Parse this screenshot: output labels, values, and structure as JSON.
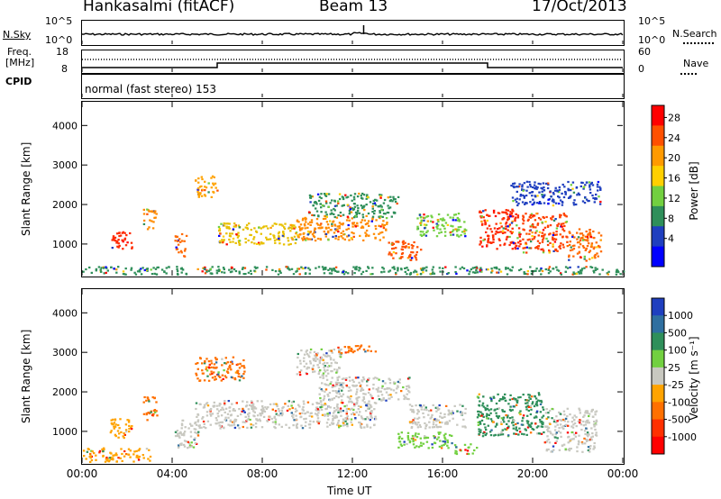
{
  "header": {
    "station": "Hankasalmi (fitACF)",
    "beam": "Beam 13",
    "date": "17/Oct/2013"
  },
  "noise_panel": {
    "left_label": "N.Sky",
    "right_label": "N.Search",
    "ticks_left": [
      "10^5",
      "10^0"
    ],
    "ticks_right": [
      "10^5",
      "10^0"
    ]
  },
  "freq_panel": {
    "left_label_1": "Freq.",
    "left_label_2": "[MHz]",
    "ticks_left": [
      "18",
      "8"
    ],
    "ticks_right": [
      "60",
      "0"
    ],
    "right_label": "Nave",
    "cpid_label": "CPID",
    "mode": "normal (fast stereo) 153"
  },
  "chart_data": [
    {
      "type": "heatmap",
      "name": "power",
      "ylabel": "Slant Range [km]",
      "yticks": [
        1000,
        2000,
        3000,
        4000
      ],
      "ylim": [
        200,
        4600
      ],
      "xlim_hours": [
        0,
        24
      ],
      "colorbar": {
        "label": "Power [dB]",
        "ticks": [
          "28",
          "24",
          "20",
          "16",
          "12",
          "8",
          "4"
        ],
        "colors": [
          "#ff0000",
          "#ff5000",
          "#ff9a00",
          "#ffd000",
          "#72d040",
          "#2f8f5a",
          "#1f3fbf",
          "#0000ff"
        ]
      },
      "blobs": [
        {
          "t0": 1.3,
          "t1": 2.2,
          "r0": 850,
          "r1": 1350,
          "c": "#ff2a00"
        },
        {
          "t0": 2.7,
          "t1": 3.3,
          "r0": 1400,
          "r1": 1900,
          "c": "#ff8a00"
        },
        {
          "t0": 4.1,
          "t1": 4.6,
          "r0": 700,
          "r1": 1300,
          "c": "#ff6a00"
        },
        {
          "t0": 5.0,
          "t1": 6.0,
          "r0": 2200,
          "r1": 2750,
          "c": "#ffa300"
        },
        {
          "t0": 6.0,
          "t1": 9.5,
          "r0": 1000,
          "r1": 1550,
          "c": "#e8c000"
        },
        {
          "t0": 9.5,
          "t1": 13.5,
          "r0": 1100,
          "r1": 1700,
          "c": "#ff8a00"
        },
        {
          "t0": 10.0,
          "t1": 14.0,
          "r0": 1700,
          "r1": 2300,
          "c": "#2f8f5a"
        },
        {
          "t0": 13.5,
          "t1": 15.0,
          "r0": 600,
          "r1": 1100,
          "c": "#ff5000"
        },
        {
          "t0": 14.8,
          "t1": 17.0,
          "r0": 1200,
          "r1": 1800,
          "c": "#72d040"
        },
        {
          "t0": 17.6,
          "t1": 19.5,
          "r0": 900,
          "r1": 1900,
          "c": "#ff2a00"
        },
        {
          "t0": 19.5,
          "t1": 21.5,
          "r0": 800,
          "r1": 1800,
          "c": "#ff4000"
        },
        {
          "t0": 21.5,
          "t1": 23.0,
          "r0": 600,
          "r1": 1400,
          "c": "#ff6a00"
        },
        {
          "t0": 19.0,
          "t1": 23.0,
          "r0": 2000,
          "r1": 2600,
          "c": "#1f3fbf"
        },
        {
          "t0": 0.0,
          "t1": 24.0,
          "r0": 250,
          "r1": 450,
          "c": "#2f8f5a"
        }
      ]
    },
    {
      "type": "heatmap",
      "name": "velocity",
      "ylabel": "Slant Range [km]",
      "yticks": [
        1000,
        2000,
        3000,
        4000
      ],
      "ylim": [
        200,
        4600
      ],
      "xlim_hours": [
        0,
        24
      ],
      "colorbar": {
        "label": "Velocity [m s⁻¹]",
        "ticks": [
          "1000",
          "500",
          "100",
          "25",
          "-25",
          "-100",
          "-500",
          "-1000"
        ],
        "colors": [
          "#1f3fbf",
          "#2f6fa0",
          "#2f8f5a",
          "#72d040",
          "#c8c8c0",
          "#ffa300",
          "#ff7000",
          "#ff3000",
          "#ff0000"
        ]
      },
      "blobs": [
        {
          "t0": 1.2,
          "t1": 2.2,
          "r0": 850,
          "r1": 1350,
          "c": "#ffa300"
        },
        {
          "t0": 2.7,
          "t1": 3.3,
          "r0": 1300,
          "r1": 1900,
          "c": "#ff7000"
        },
        {
          "t0": 4.1,
          "t1": 5.2,
          "r0": 600,
          "r1": 1300,
          "c": "#c8c8c0"
        },
        {
          "t0": 5.0,
          "t1": 7.2,
          "r0": 2300,
          "r1": 2900,
          "c": "#ff7000"
        },
        {
          "t0": 5.0,
          "t1": 13.0,
          "r0": 1100,
          "r1": 1800,
          "c": "#c8c8c0"
        },
        {
          "t0": 10.5,
          "t1": 14.5,
          "r0": 1800,
          "r1": 2400,
          "c": "#c8c8c0"
        },
        {
          "t0": 9.5,
          "t1": 11.5,
          "r0": 2400,
          "r1": 3100,
          "c": "#c8c8c0"
        },
        {
          "t0": 14.0,
          "t1": 16.5,
          "r0": 600,
          "r1": 1000,
          "c": "#72d040"
        },
        {
          "t0": 14.5,
          "t1": 17.0,
          "r0": 1100,
          "r1": 1700,
          "c": "#c8c8c0"
        },
        {
          "t0": 17.5,
          "t1": 20.5,
          "r0": 900,
          "r1": 2000,
          "c": "#2f8f5a"
        },
        {
          "t0": 20.5,
          "t1": 22.8,
          "r0": 500,
          "r1": 1600,
          "c": "#c8c8c0"
        },
        {
          "t0": 11.0,
          "t1": 13.0,
          "r0": 3000,
          "r1": 3200,
          "c": "#ff7000"
        },
        {
          "t0": 0.0,
          "t1": 3.0,
          "r0": 250,
          "r1": 600,
          "c": "#ffa300"
        },
        {
          "t0": 16.5,
          "t1": 17.5,
          "r0": 450,
          "r1": 700,
          "c": "#72d040"
        }
      ]
    }
  ],
  "x_axis": {
    "ticks": [
      "00:00",
      "04:00",
      "08:00",
      "12:00",
      "16:00",
      "20:00",
      "00:00"
    ],
    "label": "Time UT"
  }
}
